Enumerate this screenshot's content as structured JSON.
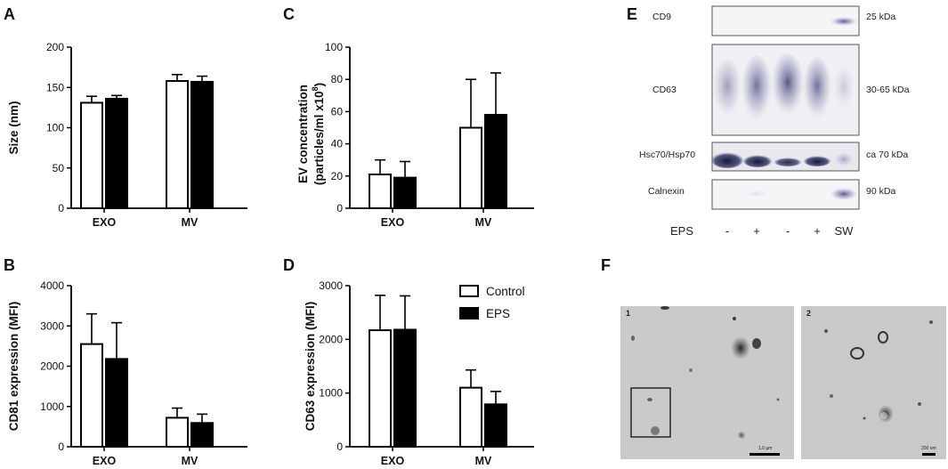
{
  "panel_letters": [
    "A",
    "B",
    "C",
    "D",
    "E",
    "F"
  ],
  "legend": {
    "control": "Control",
    "eps": "EPS"
  },
  "colors": {
    "control_fill": "#ffffff",
    "eps_fill": "#000000",
    "stroke": "#000000"
  },
  "chart_data": [
    {
      "panel": "A",
      "type": "bar",
      "categories": [
        "EXO",
        "MV"
      ],
      "series": [
        {
          "name": "Control",
          "values": [
            131,
            158
          ],
          "errors": [
            8,
            8
          ]
        },
        {
          "name": "EPS",
          "values": [
            136,
            157
          ],
          "errors": [
            4,
            7
          ]
        }
      ],
      "ylabel": "Size (nm)",
      "ylabel_sup": "",
      "ylabel_line2": "",
      "ylim": [
        0,
        200
      ],
      "yticks": [
        0,
        50,
        100,
        150,
        200
      ],
      "grid": false
    },
    {
      "panel": "C",
      "type": "bar",
      "categories": [
        "EXO",
        "MV"
      ],
      "series": [
        {
          "name": "Control",
          "values": [
            21,
            50
          ],
          "errors": [
            9,
            30
          ]
        },
        {
          "name": "EPS",
          "values": [
            19,
            58
          ],
          "errors": [
            10,
            26
          ]
        }
      ],
      "ylabel": "EV concentration",
      "ylabel_line2": "(particles/ml x10",
      "ylabel_sup": "8",
      "ylabel_close": ")",
      "ylim": [
        0,
        100
      ],
      "yticks": [
        0,
        20,
        40,
        60,
        80,
        100
      ],
      "grid": false
    },
    {
      "panel": "B",
      "type": "bar",
      "categories": [
        "EXO",
        "MV"
      ],
      "series": [
        {
          "name": "Control",
          "values": [
            2550,
            720
          ],
          "errors": [
            750,
            240
          ]
        },
        {
          "name": "EPS",
          "values": [
            2180,
            590
          ],
          "errors": [
            900,
            220
          ]
        }
      ],
      "ylabel": "CD81 expression (MFI)",
      "ylabel_sup": "",
      "ylabel_line2": "",
      "ylim": [
        0,
        4000
      ],
      "yticks": [
        0,
        1000,
        2000,
        3000,
        4000
      ],
      "grid": false
    },
    {
      "panel": "D",
      "type": "bar",
      "categories": [
        "EXO",
        "MV"
      ],
      "series": [
        {
          "name": "Control",
          "values": [
            2170,
            1100
          ],
          "errors": [
            650,
            330
          ]
        },
        {
          "name": "EPS",
          "values": [
            2180,
            790
          ],
          "errors": [
            630,
            240
          ]
        }
      ],
      "ylabel": "CD63 expression (MFI)",
      "ylabel_sup": "",
      "ylabel_line2": "",
      "ylim": [
        0,
        3000
      ],
      "yticks": [
        0,
        1000,
        2000,
        3000
      ],
      "grid": false
    }
  ],
  "western_blot": {
    "rows": [
      {
        "protein": "CD9",
        "size": "25 kDa"
      },
      {
        "protein": "CD63",
        "size": "30-65 kDa"
      },
      {
        "protein": "Hsc70/Hsp70",
        "size": "ca 70 kDa"
      },
      {
        "protein": "Calnexin",
        "size": "90 kDa"
      }
    ],
    "condition_label": "EPS",
    "lanes": [
      "-",
      "+",
      "-",
      "+",
      "SW"
    ]
  },
  "micrographs": [
    {
      "number": "1",
      "scale": "1,0 µm"
    },
    {
      "number": "2",
      "scale": "200 nm"
    }
  ]
}
